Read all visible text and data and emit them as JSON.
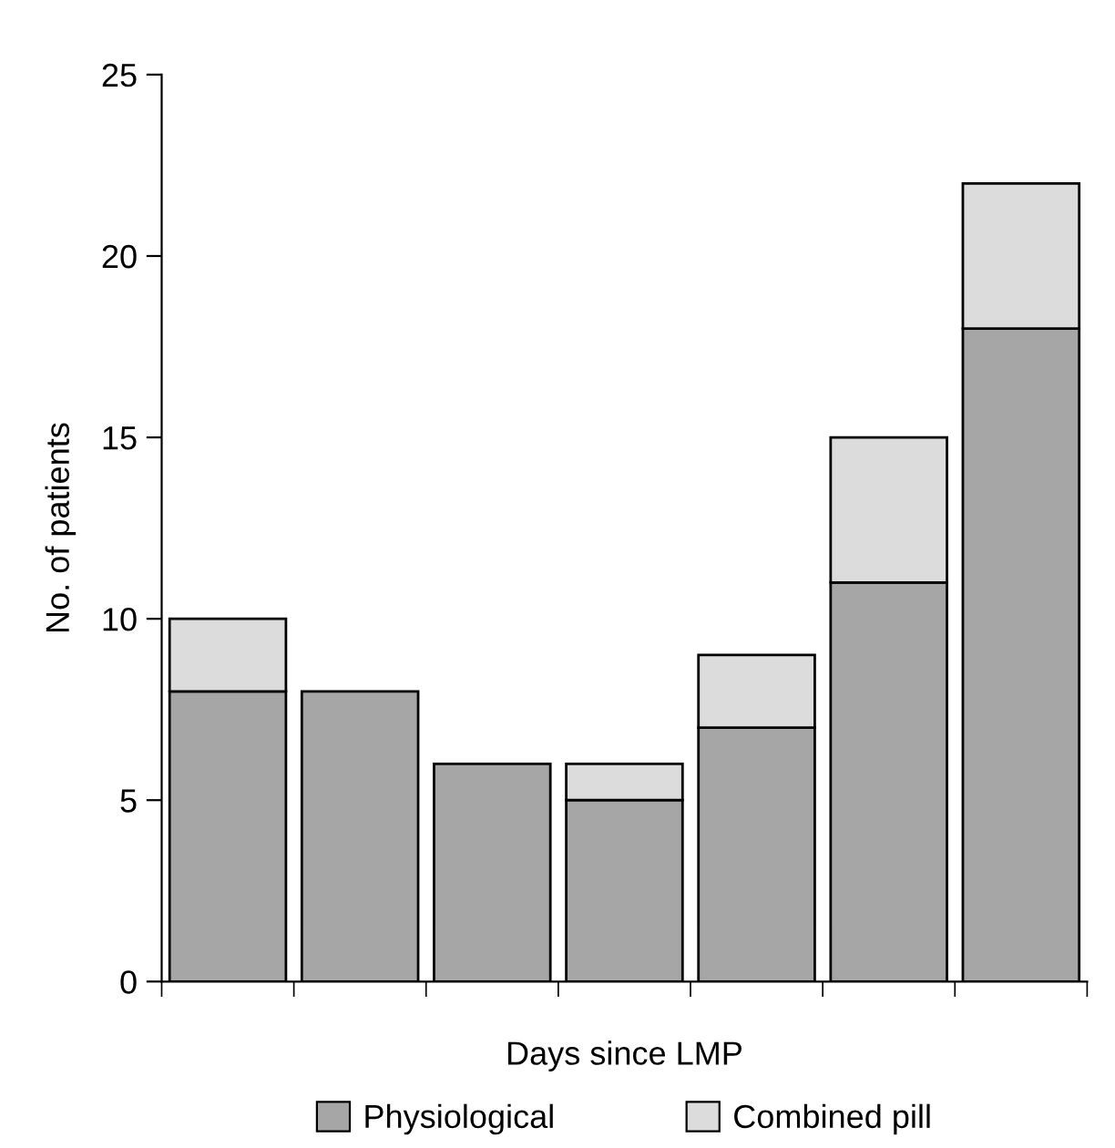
{
  "chart_data": {
    "type": "bar",
    "stacked": true,
    "xlabel": "Days since LMP",
    "ylabel": "No. of patients",
    "categories": [
      null,
      null,
      null,
      null,
      null,
      null,
      null
    ],
    "series": [
      {
        "name": "Physiological",
        "color": "#a6a6a6",
        "values": [
          8,
          8,
          6,
          5,
          7,
          11,
          18
        ]
      },
      {
        "name": "Combined pill",
        "color": "#dcdcdc",
        "values": [
          2,
          null,
          null,
          1,
          2,
          4,
          4
        ]
      }
    ],
    "ylim": [
      0,
      25
    ],
    "yticks": [
      0,
      5,
      10,
      15,
      20,
      25
    ],
    "grid": false,
    "legend": "bottom"
  }
}
